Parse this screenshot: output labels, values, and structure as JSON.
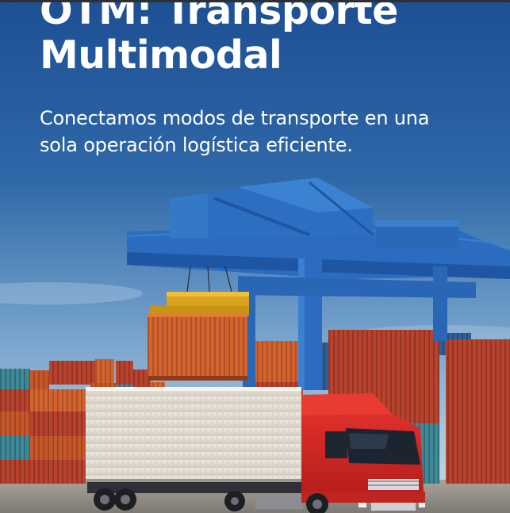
{
  "hero": {
    "title_line1": "OTM: Transporte",
    "title_line2": "Multimodal",
    "subtitle_line1": "Conectamos modos de transporte en una",
    "subtitle_line2": "sola operación logística eficiente."
  },
  "colors": {
    "sky_top": "#1f5296",
    "sky_bottom": "#9ec1de",
    "crane_blue": "#2b6cc0",
    "container_orange": "#c85a2a",
    "truck_red": "#d42a26",
    "trailer_white": "#e6e1d6",
    "text": "#ffffff"
  },
  "icons": [
    "gantry-crane-illustration",
    "container-truck-illustration"
  ]
}
